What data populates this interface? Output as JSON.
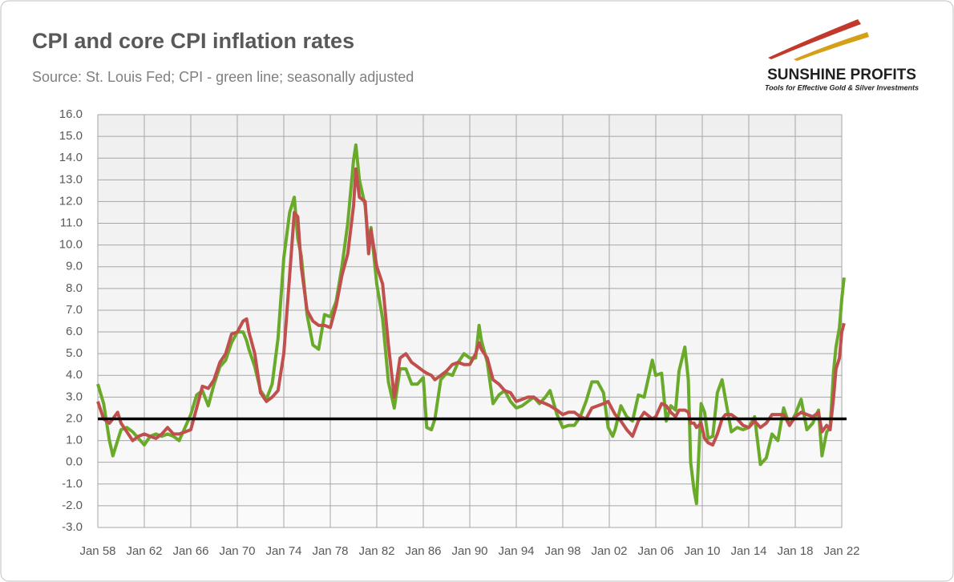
{
  "chart_data": {
    "type": "line",
    "title": "CPI and core CPI inflation rates",
    "subtitle": "Source: St. Louis Fed; CPI - green line; seasonally adjusted",
    "logo": {
      "name": "SUNSHINE PROFITS",
      "tagline": "Tools for Effective Gold & Silver Investments"
    },
    "x": [
      1958.0,
      1958.5,
      1959.0,
      1959.3,
      1959.7,
      1960.0,
      1960.5,
      1961.0,
      1961.5,
      1962.0,
      1962.5,
      1963.0,
      1963.5,
      1964.0,
      1964.5,
      1965.0,
      1965.5,
      1966.0,
      1966.5,
      1967.0,
      1967.5,
      1968.0,
      1968.5,
      1969.0,
      1969.5,
      1970.0,
      1970.5,
      1970.8,
      1971.0,
      1971.5,
      1972.0,
      1972.5,
      1973.0,
      1973.5,
      1974.0,
      1974.5,
      1974.9,
      1975.2,
      1975.5,
      1976.0,
      1976.5,
      1977.0,
      1977.5,
      1978.0,
      1978.5,
      1979.0,
      1979.5,
      1980.0,
      1980.2,
      1980.5,
      1981.0,
      1981.3,
      1981.5,
      1982.0,
      1982.5,
      1983.0,
      1983.5,
      1984.0,
      1984.5,
      1985.0,
      1985.5,
      1986.0,
      1986.3,
      1986.7,
      1987.0,
      1987.5,
      1988.0,
      1988.5,
      1989.0,
      1989.5,
      1990.0,
      1990.5,
      1990.8,
      1991.0,
      1991.5,
      1992.0,
      1992.5,
      1993.0,
      1993.5,
      1994.0,
      1994.5,
      1995.0,
      1995.5,
      1996.0,
      1996.5,
      1996.9,
      1997.5,
      1998.0,
      1998.5,
      1999.0,
      1999.5,
      2000.0,
      2000.5,
      2001.0,
      2001.5,
      2001.9,
      2002.3,
      2002.5,
      2003.0,
      2003.5,
      2004.0,
      2004.5,
      2005.0,
      2005.7,
      2006.0,
      2006.5,
      2006.9,
      2007.3,
      2007.7,
      2008.0,
      2008.5,
      2008.8,
      2009.0,
      2009.3,
      2009.5,
      2009.9,
      2010.2,
      2010.5,
      2010.9,
      2011.3,
      2011.7,
      2012.0,
      2012.5,
      2013.0,
      2013.5,
      2014.0,
      2014.5,
      2015.0,
      2015.5,
      2016.0,
      2016.5,
      2017.0,
      2017.5,
      2018.0,
      2018.5,
      2019.0,
      2019.5,
      2020.0,
      2020.3,
      2020.7,
      2021.0,
      2021.3,
      2021.5,
      2021.8,
      2022.0,
      2022.2
    ],
    "series": [
      {
        "name": "CPI",
        "color": "#6aaa2a",
        "values": [
          3.6,
          2.7,
          1.0,
          0.3,
          1.0,
          1.5,
          1.6,
          1.4,
          1.1,
          0.8,
          1.2,
          1.3,
          1.2,
          1.3,
          1.2,
          1.0,
          1.6,
          2.2,
          3.1,
          3.3,
          2.6,
          3.6,
          4.4,
          4.7,
          5.5,
          6.0,
          6.0,
          5.6,
          5.2,
          4.4,
          3.3,
          2.9,
          3.6,
          5.7,
          9.4,
          11.5,
          12.2,
          10.3,
          9.5,
          6.8,
          5.4,
          5.2,
          6.8,
          6.7,
          7.4,
          9.0,
          11.0,
          13.9,
          14.6,
          13.0,
          11.8,
          10.0,
          10.8,
          8.2,
          6.6,
          3.7,
          2.5,
          4.3,
          4.3,
          3.6,
          3.6,
          3.9,
          1.6,
          1.5,
          2.0,
          3.8,
          4.1,
          4.0,
          4.6,
          5.0,
          4.8,
          4.8,
          6.3,
          5.6,
          4.6,
          2.7,
          3.1,
          3.3,
          2.8,
          2.5,
          2.6,
          2.8,
          3.0,
          2.7,
          3.0,
          3.3,
          2.2,
          1.6,
          1.7,
          1.7,
          2.1,
          2.8,
          3.7,
          3.7,
          3.2,
          1.6,
          1.2,
          1.5,
          2.6,
          2.1,
          1.9,
          3.1,
          3.0,
          4.7,
          4.0,
          4.1,
          1.9,
          2.6,
          2.4,
          4.2,
          5.3,
          3.8,
          0.0,
          -1.3,
          -1.9,
          2.7,
          2.3,
          1.1,
          1.2,
          3.2,
          3.8,
          2.9,
          1.4,
          1.6,
          1.5,
          1.6,
          2.1,
          -0.1,
          0.2,
          1.3,
          1.0,
          2.5,
          1.7,
          2.2,
          2.9,
          1.5,
          1.8,
          2.4,
          0.3,
          1.4,
          1.6,
          4.2,
          5.3,
          6.2,
          7.5,
          8.5
        ]
      },
      {
        "name": "Core CPI",
        "color": "#c0504d",
        "values": [
          2.8,
          2.0,
          1.8,
          2.0,
          2.3,
          1.8,
          1.4,
          1.0,
          1.2,
          1.3,
          1.2,
          1.1,
          1.3,
          1.6,
          1.3,
          1.3,
          1.4,
          1.5,
          2.5,
          3.5,
          3.4,
          3.8,
          4.6,
          5.0,
          5.9,
          6.0,
          6.5,
          6.6,
          6.0,
          5.0,
          3.2,
          2.8,
          3.0,
          3.3,
          5.0,
          8.6,
          11.5,
          11.3,
          9.0,
          7.0,
          6.5,
          6.3,
          6.3,
          6.2,
          7.2,
          8.6,
          9.6,
          11.8,
          13.5,
          12.2,
          12.0,
          9.6,
          10.7,
          9.0,
          8.2,
          5.4,
          3.0,
          4.8,
          5.0,
          4.6,
          4.4,
          4.2,
          4.1,
          4.0,
          3.8,
          4.0,
          4.2,
          4.5,
          4.6,
          4.5,
          4.5,
          5.0,
          5.5,
          5.2,
          4.8,
          3.8,
          3.6,
          3.3,
          3.2,
          2.8,
          2.9,
          3.0,
          3.0,
          2.8,
          2.7,
          2.6,
          2.4,
          2.2,
          2.3,
          2.3,
          2.1,
          2.0,
          2.5,
          2.6,
          2.7,
          2.8,
          2.4,
          2.2,
          1.9,
          1.5,
          1.2,
          1.9,
          2.3,
          2.0,
          2.1,
          2.7,
          2.6,
          2.3,
          2.1,
          2.4,
          2.4,
          2.3,
          1.8,
          1.8,
          1.6,
          1.8,
          1.1,
          0.9,
          0.8,
          1.3,
          2.0,
          2.2,
          2.2,
          2.0,
          1.7,
          1.6,
          1.9,
          1.6,
          1.8,
          2.2,
          2.2,
          2.2,
          1.7,
          2.1,
          2.3,
          2.2,
          2.1,
          2.3,
          1.4,
          1.7,
          1.5,
          3.0,
          4.3,
          4.8,
          6.0,
          6.4
        ]
      }
    ],
    "reference_line": 2,
    "xlim": [
      1958,
      2022
    ],
    "xticks": [
      {
        "value": 1958,
        "label": "Jan 58"
      },
      {
        "value": 1962,
        "label": "Jan 62"
      },
      {
        "value": 1966,
        "label": "Jan 66"
      },
      {
        "value": 1970,
        "label": "Jan 70"
      },
      {
        "value": 1974,
        "label": "Jan 74"
      },
      {
        "value": 1978,
        "label": "Jan 78"
      },
      {
        "value": 1982,
        "label": "Jan 82"
      },
      {
        "value": 1986,
        "label": "Jan 86"
      },
      {
        "value": 1990,
        "label": "Jan 90"
      },
      {
        "value": 1994,
        "label": "Jan 94"
      },
      {
        "value": 1998,
        "label": "Jan 98"
      },
      {
        "value": 2002,
        "label": "Jan 02"
      },
      {
        "value": 2006,
        "label": "Jan 06"
      },
      {
        "value": 2010,
        "label": "Jan 10"
      },
      {
        "value": 2014,
        "label": "Jan 14"
      },
      {
        "value": 2018,
        "label": "Jan 18"
      },
      {
        "value": 2022,
        "label": "Jan 22"
      }
    ],
    "ylim": [
      -3,
      16
    ],
    "yticks": [
      {
        "value": -3,
        "label": "-3.0"
      },
      {
        "value": -2,
        "label": "-2.0"
      },
      {
        "value": -1,
        "label": "-1.0"
      },
      {
        "value": 0,
        "label": "0.0"
      },
      {
        "value": 1,
        "label": "1.0"
      },
      {
        "value": 2,
        "label": "2.0"
      },
      {
        "value": 3,
        "label": "3.0"
      },
      {
        "value": 4,
        "label": "4.0"
      },
      {
        "value": 5,
        "label": "5.0"
      },
      {
        "value": 6,
        "label": "6.0"
      },
      {
        "value": 7,
        "label": "7.0"
      },
      {
        "value": 8,
        "label": "8.0"
      },
      {
        "value": 9,
        "label": "9.0"
      },
      {
        "value": 10,
        "label": "10.0"
      },
      {
        "value": 11,
        "label": "11.0"
      },
      {
        "value": 12,
        "label": "12.0"
      },
      {
        "value": 13,
        "label": "13.0"
      },
      {
        "value": 14,
        "label": "14.0"
      },
      {
        "value": 15,
        "label": "15.0"
      },
      {
        "value": 16,
        "label": "16.0"
      }
    ],
    "grid": true
  }
}
